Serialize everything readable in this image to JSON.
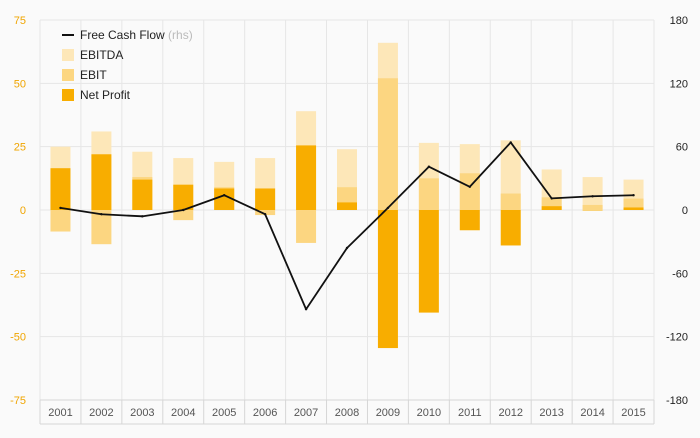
{
  "chart_data": {
    "type": "bar",
    "title": "",
    "xlabel": "",
    "ylabel": "",
    "categories": [
      "2001",
      "2002",
      "2003",
      "2004",
      "2005",
      "2006",
      "2007",
      "2008",
      "2009",
      "2010",
      "2011",
      "2012",
      "2013",
      "2014",
      "2015"
    ],
    "ylim": [
      -75,
      75
    ],
    "ylim_right": [
      -180,
      180
    ],
    "yticks_left": [
      75,
      50,
      25,
      0,
      -25,
      -50,
      -75
    ],
    "yticks_left_labels": [
      "75",
      "50",
      "25",
      "0",
      "-25",
      "-50",
      "-75"
    ],
    "yticks_right": [
      180,
      120,
      60,
      0,
      -60,
      -120,
      -180
    ],
    "yticks_right_labels": [
      "180",
      "120",
      "60",
      "0",
      "-60",
      "-120",
      "-180"
    ],
    "grid": true,
    "legend_position": "top-left",
    "series": [
      {
        "name": "EBITDA",
        "kind": "bar",
        "color": "#fde7b8",
        "values": [
          25,
          31,
          23,
          20.5,
          19,
          20.5,
          39,
          24,
          66,
          26.5,
          26,
          27.5,
          16,
          13,
          12
        ]
      },
      {
        "name": "EBIT",
        "kind": "bar",
        "color": "#fcd681",
        "values": [
          -8.5,
          -13.5,
          13,
          -4,
          9,
          -2,
          -13,
          9,
          52,
          12.5,
          14.5,
          6.5,
          5,
          2,
          4.5
        ]
      },
      {
        "name": "Net Profit",
        "kind": "bar",
        "color": "#f8ad00",
        "values": [
          16.5,
          22,
          12,
          10,
          8.5,
          8.5,
          25.5,
          3,
          -54.5,
          -40.5,
          -8,
          -14,
          1.5,
          0,
          1
        ]
      },
      {
        "name": "Free Cash Flow",
        "legend_suffix": "(rhs)",
        "kind": "line",
        "axis": "right",
        "color": "#111111",
        "values": [
          2,
          -4,
          -6,
          0,
          14,
          -4,
          -94,
          -36,
          2,
          41,
          22,
          64,
          11,
          13,
          14
        ]
      }
    ],
    "colors": {
      "background": "#fafafa",
      "grid": "#e6e6e6",
      "left_axis_labels": "#f0a500",
      "right_axis_labels": "#222222",
      "x_axis_labels": "#555555",
      "legend_text": "#222222",
      "legend_suffix": "#bbbbbb"
    }
  }
}
